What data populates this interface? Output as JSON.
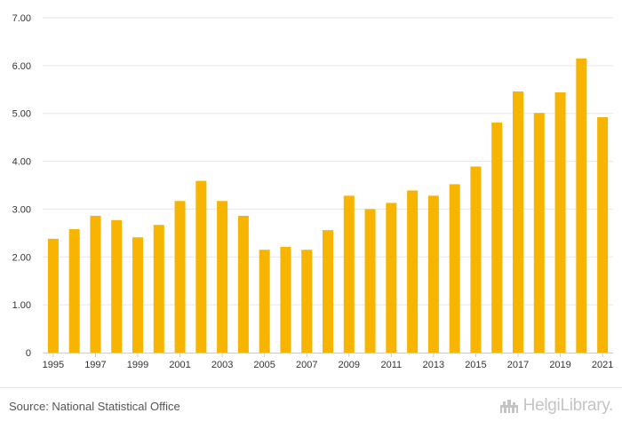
{
  "chart_data": {
    "type": "bar",
    "title": "",
    "xlabel": "",
    "ylabel": "",
    "ylim": [
      0,
      7
    ],
    "grid": true,
    "bar_color": "#f7b400",
    "grid_color": "#e6e6e6",
    "y_ticks": [
      {
        "value": 0,
        "label": "0"
      },
      {
        "value": 1,
        "label": "1.00"
      },
      {
        "value": 2,
        "label": "2.00"
      },
      {
        "value": 3,
        "label": "3.00"
      },
      {
        "value": 4,
        "label": "4.00"
      },
      {
        "value": 5,
        "label": "5.00"
      },
      {
        "value": 6,
        "label": "6.00"
      },
      {
        "value": 7,
        "label": "7.00"
      }
    ],
    "categories": [
      "1995",
      "1996",
      "1997",
      "1998",
      "1999",
      "2000",
      "2001",
      "2002",
      "2003",
      "2004",
      "2005",
      "2006",
      "2007",
      "2008",
      "2009",
      "2010",
      "2011",
      "2012",
      "2013",
      "2014",
      "2015",
      "2016",
      "2017",
      "2018",
      "2019",
      "2020",
      "2021"
    ],
    "x_tick_labels": [
      "1995",
      "1997",
      "1999",
      "2001",
      "2003",
      "2005",
      "2007",
      "2009",
      "2011",
      "2013",
      "2015",
      "2017",
      "2019",
      "2021"
    ],
    "values": [
      2.38,
      2.58,
      2.86,
      2.77,
      2.41,
      2.67,
      3.17,
      3.59,
      3.17,
      2.86,
      2.15,
      2.21,
      2.15,
      2.56,
      3.28,
      3.0,
      3.13,
      3.39,
      3.28,
      3.52,
      3.89,
      4.81,
      5.46,
      5.01,
      5.44,
      6.15,
      4.92
    ]
  },
  "footer": {
    "source": "Source: National Statistical Office",
    "brand": "HelgiLibrary."
  }
}
